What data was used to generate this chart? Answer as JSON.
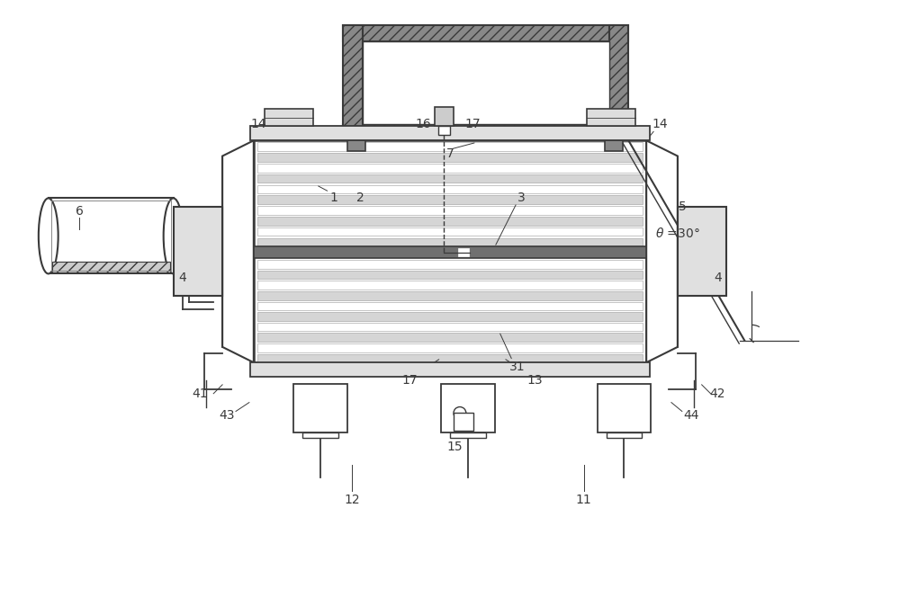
{
  "bg_color": "#ffffff",
  "line_color": "#3a3a3a",
  "figsize": [
    10.0,
    6.74
  ],
  "dpi": 100
}
